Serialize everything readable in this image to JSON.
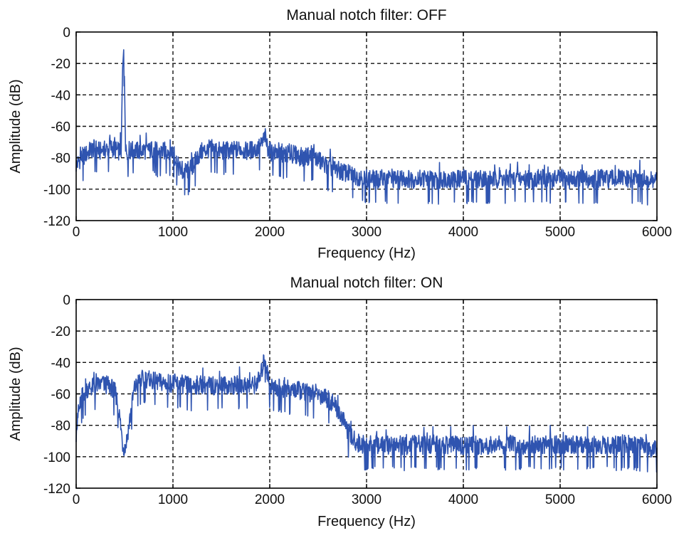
{
  "chart_data": [
    {
      "type": "line",
      "title": "Manual notch filter: OFF",
      "xlabel": "Frequency (Hz)",
      "ylabel": "Amplitude (dB)",
      "xlim": [
        0,
        6000
      ],
      "ylim": [
        -120,
        0
      ],
      "xticks": [
        "0",
        "1000",
        "2000",
        "3000",
        "4000",
        "5000",
        "6000"
      ],
      "yticks": [
        "0",
        "-20",
        "-40",
        "-60",
        "-80",
        "-100",
        "-120"
      ],
      "xtick_values": [
        0,
        1000,
        2000,
        3000,
        4000,
        5000,
        6000
      ],
      "ytick_values": [
        0,
        -20,
        -40,
        -60,
        -80,
        -100,
        -120
      ],
      "grid": true,
      "color": "#2f54b0",
      "series": [
        {
          "x": [
            0,
            50,
            100,
            150,
            200,
            250,
            300,
            350,
            400,
            450,
            470,
            480,
            490,
            500,
            510,
            520,
            550,
            600,
            650,
            700,
            750,
            800,
            850,
            900,
            950,
            1000,
            1050,
            1100,
            1150,
            1200,
            1250,
            1300,
            1350,
            1400,
            1450,
            1500,
            1550,
            1600,
            1650,
            1700,
            1750,
            1800,
            1850,
            1900,
            1930,
            1950,
            1970,
            2000,
            2050,
            2100,
            2150,
            2200,
            2250,
            2300,
            2350,
            2400,
            2450,
            2500,
            2550,
            2600,
            2650,
            2700,
            2750,
            2800,
            2850,
            2900,
            2950,
            3000,
            3100,
            3200,
            3300,
            3400,
            3500,
            3600,
            3700,
            3750,
            3800,
            3900,
            4000,
            4100,
            4200,
            4300,
            4400,
            4500,
            4600,
            4700,
            4800,
            4900,
            5000,
            5100,
            5200,
            5300,
            5400,
            5500,
            5600,
            5700,
            5800,
            5900,
            5950,
            6000
          ],
          "y": [
            -85,
            -80,
            -78,
            -75,
            -74,
            -76,
            -75,
            -73,
            -75,
            -76,
            -60,
            -20,
            -7,
            -30,
            -70,
            -76,
            -76,
            -75,
            -76,
            -75,
            -76,
            -74,
            -77,
            -76,
            -75,
            -76,
            -85,
            -90,
            -88,
            -86,
            -80,
            -76,
            -75,
            -74,
            -75,
            -76,
            -75,
            -76,
            -75,
            -74,
            -76,
            -75,
            -75,
            -73,
            -70,
            -66,
            -72,
            -76,
            -77,
            -76,
            -78,
            -77,
            -78,
            -79,
            -80,
            -79,
            -80,
            -81,
            -84,
            -85,
            -87,
            -88,
            -89,
            -90,
            -91,
            -92,
            -92,
            -93,
            -94,
            -93,
            -94,
            -93,
            -94,
            -93,
            -94,
            -95,
            -93,
            -94,
            -93,
            -94,
            -93,
            -94,
            -93,
            -94,
            -93,
            -94,
            -93,
            -94,
            -93,
            -94,
            -93,
            -94,
            -93,
            -94,
            -93,
            -94,
            -93,
            -94,
            -95,
            -94
          ]
        }
      ]
    },
    {
      "type": "line",
      "title": "Manual notch filter: ON",
      "xlabel": "Frequency (Hz)",
      "ylabel": "Amplitude (dB)",
      "xlim": [
        0,
        6000
      ],
      "ylim": [
        -120,
        0
      ],
      "xticks": [
        "0",
        "1000",
        "2000",
        "3000",
        "4000",
        "5000",
        "6000"
      ],
      "yticks": [
        "0",
        "-20",
        "-40",
        "-60",
        "-80",
        "-100",
        "-120"
      ],
      "xtick_values": [
        0,
        1000,
        2000,
        3000,
        4000,
        5000,
        6000
      ],
      "ytick_values": [
        0,
        -20,
        -40,
        -60,
        -80,
        -100,
        -120
      ],
      "grid": true,
      "color": "#2f54b0",
      "series": [
        {
          "x": [
            0,
            30,
            60,
            100,
            150,
            200,
            250,
            300,
            350,
            400,
            430,
            460,
            480,
            500,
            520,
            550,
            580,
            600,
            650,
            700,
            750,
            800,
            900,
            1000,
            1100,
            1200,
            1300,
            1400,
            1500,
            1600,
            1700,
            1800,
            1850,
            1900,
            1930,
            1950,
            1970,
            2000,
            2050,
            2100,
            2200,
            2300,
            2400,
            2500,
            2600,
            2650,
            2700,
            2750,
            2800,
            2850,
            2900,
            2950,
            3000,
            3100,
            3200,
            3300,
            3400,
            3500,
            3600,
            3700,
            3800,
            3900,
            4000,
            4100,
            4200,
            4300,
            4400,
            4500,
            4600,
            4700,
            4800,
            4900,
            5000,
            5100,
            5200,
            5300,
            5400,
            5500,
            5600,
            5700,
            5800,
            5900,
            5950,
            6000
          ],
          "y": [
            -85,
            -70,
            -62,
            -57,
            -56,
            -55,
            -54,
            -54,
            -55,
            -58,
            -66,
            -80,
            -92,
            -95,
            -90,
            -78,
            -65,
            -57,
            -52,
            -50,
            -51,
            -52,
            -53,
            -53,
            -54,
            -55,
            -54,
            -55,
            -54,
            -55,
            -54,
            -55,
            -54,
            -50,
            -42,
            -36,
            -45,
            -54,
            -56,
            -56,
            -57,
            -58,
            -59,
            -60,
            -63,
            -66,
            -70,
            -76,
            -83,
            -88,
            -91,
            -92,
            -93,
            -92,
            -93,
            -92,
            -93,
            -92,
            -93,
            -92,
            -93,
            -92,
            -93,
            -92,
            -93,
            -92,
            -93,
            -92,
            -93,
            -92,
            -93,
            -92,
            -93,
            -92,
            -93,
            -92,
            -93,
            -92,
            -93,
            -92,
            -93,
            -94,
            -95,
            -95
          ]
        }
      ]
    }
  ]
}
